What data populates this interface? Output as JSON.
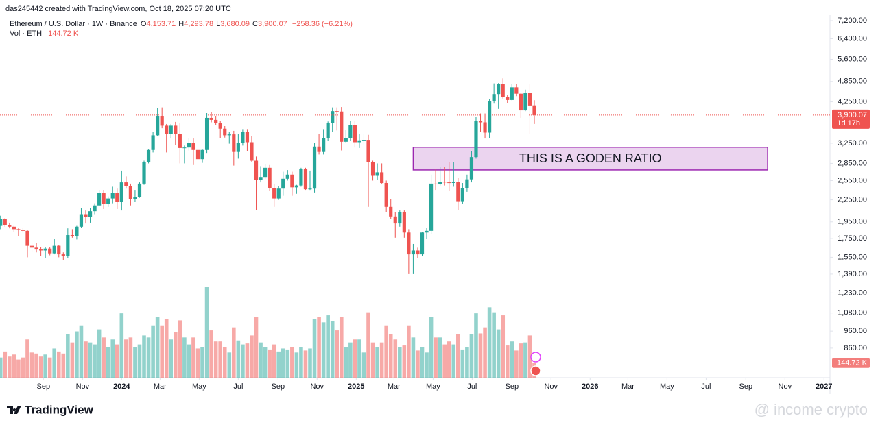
{
  "chart_data": {
    "type": "candlestick",
    "header": "das245442 created with TradingView.com, Oct 18, 2025 07:20 UTC",
    "title": "Ethereum / U.S. Dollar · 1W · Binance",
    "legend": [
      {
        "key": "O",
        "value": "4,153.71"
      },
      {
        "key": "H",
        "value": "4,293.78"
      },
      {
        "key": "L",
        "value": "3,680.09"
      },
      {
        "key": "C",
        "value": "3,900.07"
      }
    ],
    "change": "−258.36 (−6.21%)",
    "volume_title": "Vol · ETH",
    "volume_label": "144.72 K",
    "last_price_label": "3,900.07",
    "countdown": "1d 17h",
    "up_color": "#26a69a",
    "down_color": "#ef5350",
    "log_scale": true,
    "grid": false,
    "open": [
      1900,
      1990,
      1910,
      1890,
      1860,
      1855,
      1840,
      1670,
      1650,
      1630,
      1620,
      1640,
      1590,
      1670,
      1580,
      1560,
      1790,
      1780,
      1890,
      2050,
      2010,
      2090,
      2170,
      2350,
      2190,
      2270,
      2350,
      2220,
      2520,
      2460,
      2260,
      2290,
      2500,
      2880,
      3110,
      3420,
      3880,
      3640,
      3450,
      3640,
      3450,
      3150,
      3160,
      3250,
      3110,
      2930,
      3110,
      3830,
      3780,
      3700,
      3570,
      3420,
      3440,
      3070,
      3250,
      3500,
      3270,
      2900,
      2560,
      2610,
      2770,
      2430,
      2270,
      2420,
      2580,
      2650,
      2440,
      2470,
      2750,
      2410,
      2420,
      3180,
      3070,
      3360,
      3700,
      4000,
      3990,
      3280,
      3360,
      3650,
      3270,
      3310,
      3320,
      2870,
      2630,
      2690,
      2510,
      2150,
      2020,
      1930,
      2080,
      1820,
      1580,
      1620,
      1580,
      1820,
      1840,
      2500,
      2490,
      2530,
      2520,
      2510,
      2530,
      2230,
      2430,
      2570,
      2970,
      3750,
      3720,
      3480,
      4260,
      4470,
      4780,
      4380,
      4300,
      4670,
      4480,
      4020,
      4510,
      4153.71
    ],
    "high": [
      2030,
      2000,
      1940,
      1900,
      1870,
      1880,
      1850,
      1700,
      1700,
      1660,
      1660,
      1660,
      1750,
      1680,
      1600,
      1870,
      1860,
      1900,
      2130,
      2100,
      2130,
      2200,
      2400,
      2400,
      2300,
      2450,
      2420,
      2720,
      2620,
      2500,
      2400,
      2520,
      2900,
      3120,
      3500,
      4090,
      4100,
      3680,
      3680,
      3730,
      3700,
      3200,
      3360,
      3350,
      3200,
      3120,
      3950,
      3980,
      3880,
      3750,
      3630,
      3500,
      3520,
      3450,
      3560,
      3560,
      3400,
      2980,
      2800,
      2830,
      2820,
      2500,
      2460,
      2700,
      2730,
      2700,
      2480,
      2770,
      2770,
      2720,
      3250,
      3450,
      3560,
      3740,
      4100,
      4100,
      4110,
      3550,
      3750,
      3750,
      3450,
      3450,
      3430,
      2900,
      2850,
      2850,
      2550,
      2260,
      2080,
      2100,
      2100,
      1860,
      1690,
      1650,
      1830,
      1880,
      2650,
      2740,
      2790,
      2790,
      2880,
      2880,
      2600,
      2510,
      2650,
      3080,
      3860,
      3940,
      3940,
      4330,
      4790,
      4800,
      4950,
      4450,
      4770,
      4770,
      4500,
      4600,
      4760,
      4293.78
    ],
    "low": [
      1860,
      1890,
      1870,
      1830,
      1780,
      1820,
      1550,
      1600,
      1600,
      1560,
      1540,
      1570,
      1580,
      1550,
      1520,
      1540,
      1760,
      1740,
      1880,
      1930,
      1940,
      2050,
      2160,
      2120,
      2150,
      2200,
      2120,
      2100,
      2420,
      2170,
      2220,
      2280,
      2480,
      2850,
      3060,
      3410,
      3580,
      3060,
      3350,
      3210,
      2850,
      2850,
      3100,
      2820,
      2890,
      2860,
      3050,
      3720,
      3650,
      3360,
      3370,
      3240,
      2810,
      2940,
      3200,
      3090,
      2880,
      2110,
      2520,
      2580,
      2390,
      2150,
      2250,
      2310,
      2550,
      2310,
      2340,
      2450,
      2400,
      2400,
      2360,
      3020,
      3020,
      3300,
      3500,
      3530,
      3100,
      3260,
      3300,
      3160,
      3150,
      3200,
      2150,
      2550,
      2560,
      2500,
      2080,
      1990,
      1760,
      1890,
      1760,
      1390,
      1390,
      1540,
      1560,
      1750,
      1800,
      2400,
      2470,
      2470,
      2380,
      2450,
      2110,
      2190,
      2370,
      2520,
      2940,
      3500,
      3350,
      3360,
      4200,
      4060,
      4340,
      4210,
      4290,
      4410,
      3830,
      4000,
      3440,
      3680.09
    ],
    "close": [
      1990,
      1910,
      1890,
      1860,
      1855,
      1840,
      1670,
      1650,
      1630,
      1620,
      1640,
      1590,
      1670,
      1580,
      1560,
      1790,
      1780,
      1890,
      2050,
      2010,
      2090,
      2170,
      2350,
      2190,
      2270,
      2350,
      2220,
      2520,
      2460,
      2260,
      2290,
      2500,
      2880,
      3110,
      3420,
      3880,
      3640,
      3450,
      3640,
      3450,
      3150,
      3160,
      3250,
      3110,
      2930,
      3110,
      3830,
      3780,
      3700,
      3570,
      3420,
      3440,
      3070,
      3250,
      3500,
      3270,
      2900,
      2560,
      2610,
      2770,
      2430,
      2270,
      2420,
      2580,
      2650,
      2440,
      2470,
      2750,
      2410,
      2420,
      3180,
      3070,
      3360,
      3700,
      4000,
      3990,
      3280,
      3360,
      3650,
      3270,
      3310,
      3320,
      2870,
      2630,
      2690,
      2510,
      2150,
      2020,
      1930,
      2080,
      1820,
      1580,
      1620,
      1580,
      1820,
      1840,
      2500,
      2490,
      2530,
      2520,
      2510,
      2530,
      2230,
      2430,
      2570,
      2970,
      3750,
      3720,
      3480,
      4260,
      4470,
      4780,
      4380,
      4300,
      4670,
      4480,
      4020,
      4510,
      4150,
      3900.07
    ],
    "volume": [
      200000,
      260000,
      210000,
      230000,
      180000,
      200000,
      380000,
      250000,
      240000,
      210000,
      230000,
      200000,
      290000,
      260000,
      240000,
      430000,
      350000,
      460000,
      520000,
      360000,
      350000,
      330000,
      480000,
      400000,
      300000,
      380000,
      330000,
      640000,
      380000,
      400000,
      300000,
      330000,
      420000,
      400000,
      520000,
      600000,
      520000,
      580000,
      380000,
      450000,
      570000,
      400000,
      330000,
      400000,
      290000,
      300000,
      900000,
      470000,
      360000,
      360000,
      300000,
      250000,
      500000,
      370000,
      330000,
      340000,
      420000,
      600000,
      350000,
      300000,
      280000,
      330000,
      260000,
      290000,
      280000,
      300000,
      250000,
      300000,
      270000,
      290000,
      580000,
      600000,
      550000,
      620000,
      560000,
      470000,
      600000,
      300000,
      350000,
      380000,
      380000,
      250000,
      650000,
      350000,
      300000,
      350000,
      520000,
      430000,
      380000,
      300000,
      320000,
      520000,
      400000,
      270000,
      300000,
      250000,
      600000,
      400000,
      400000,
      330000,
      360000,
      330000,
      430000,
      280000,
      300000,
      430000,
      640000,
      440000,
      500000,
      700000,
      650000,
      480000,
      620000,
      320000,
      360000,
      270000,
      340000,
      350000,
      420000,
      144720
    ],
    "ylim": [
      710,
      7460
    ],
    "yticks": [
      {
        "value": 7200,
        "label": "7,200.00"
      },
      {
        "value": 6400,
        "label": "6,400.00"
      },
      {
        "value": 5600,
        "label": "5,600.00"
      },
      {
        "value": 4850,
        "label": "4,850.00"
      },
      {
        "value": 4250,
        "label": "4,250.00"
      },
      {
        "value": 3250,
        "label": "3,250.00"
      },
      {
        "value": 2850,
        "label": "2,850.00"
      },
      {
        "value": 2550,
        "label": "2,550.00"
      },
      {
        "value": 2250,
        "label": "2,250.00"
      },
      {
        "value": 1950,
        "label": "1,950.00"
      },
      {
        "value": 1750,
        "label": "1,750.00"
      },
      {
        "value": 1550,
        "label": "1,550.00"
      },
      {
        "value": 1390,
        "label": "1,390.00"
      },
      {
        "value": 1230,
        "label": "1,230.00"
      },
      {
        "value": 1080,
        "label": "1,080.00"
      },
      {
        "value": 960,
        "label": "960.00"
      },
      {
        "value": 860,
        "label": "860.00"
      }
    ],
    "xticks": [
      {
        "value": 9.57,
        "label": "Sep"
      },
      {
        "value": 18.29,
        "label": "Nov"
      },
      {
        "value": 27.0,
        "label": "2024"
      },
      {
        "value": 35.57,
        "label": "Mar"
      },
      {
        "value": 44.29,
        "label": "May"
      },
      {
        "value": 53.0,
        "label": "Jul"
      },
      {
        "value": 61.86,
        "label": "Sep"
      },
      {
        "value": 70.57,
        "label": "Nov"
      },
      {
        "value": 79.29,
        "label": "2025"
      },
      {
        "value": 87.71,
        "label": "Mar"
      },
      {
        "value": 96.43,
        "label": "May"
      },
      {
        "value": 105.14,
        "label": "Jul"
      },
      {
        "value": 114.0,
        "label": "Sep"
      },
      {
        "value": 122.71,
        "label": "Nov"
      },
      {
        "value": 131.43,
        "label": "2026"
      },
      {
        "value": 139.86,
        "label": "Mar"
      },
      {
        "value": 148.57,
        "label": "May"
      },
      {
        "value": 157.29,
        "label": "Jul"
      },
      {
        "value": 166.14,
        "label": "Sep"
      },
      {
        "value": 174.86,
        "label": "Nov"
      },
      {
        "value": 183.57,
        "label": "2027"
      }
    ],
    "annotations": [
      {
        "text": "THIS IS A GODEN RATIO",
        "top": 3166,
        "bottom": 2732,
        "start": 92,
        "end": 171,
        "color": "#9c27b0"
      }
    ],
    "brand": "TradingView",
    "watermark": "@ income crypto"
  }
}
